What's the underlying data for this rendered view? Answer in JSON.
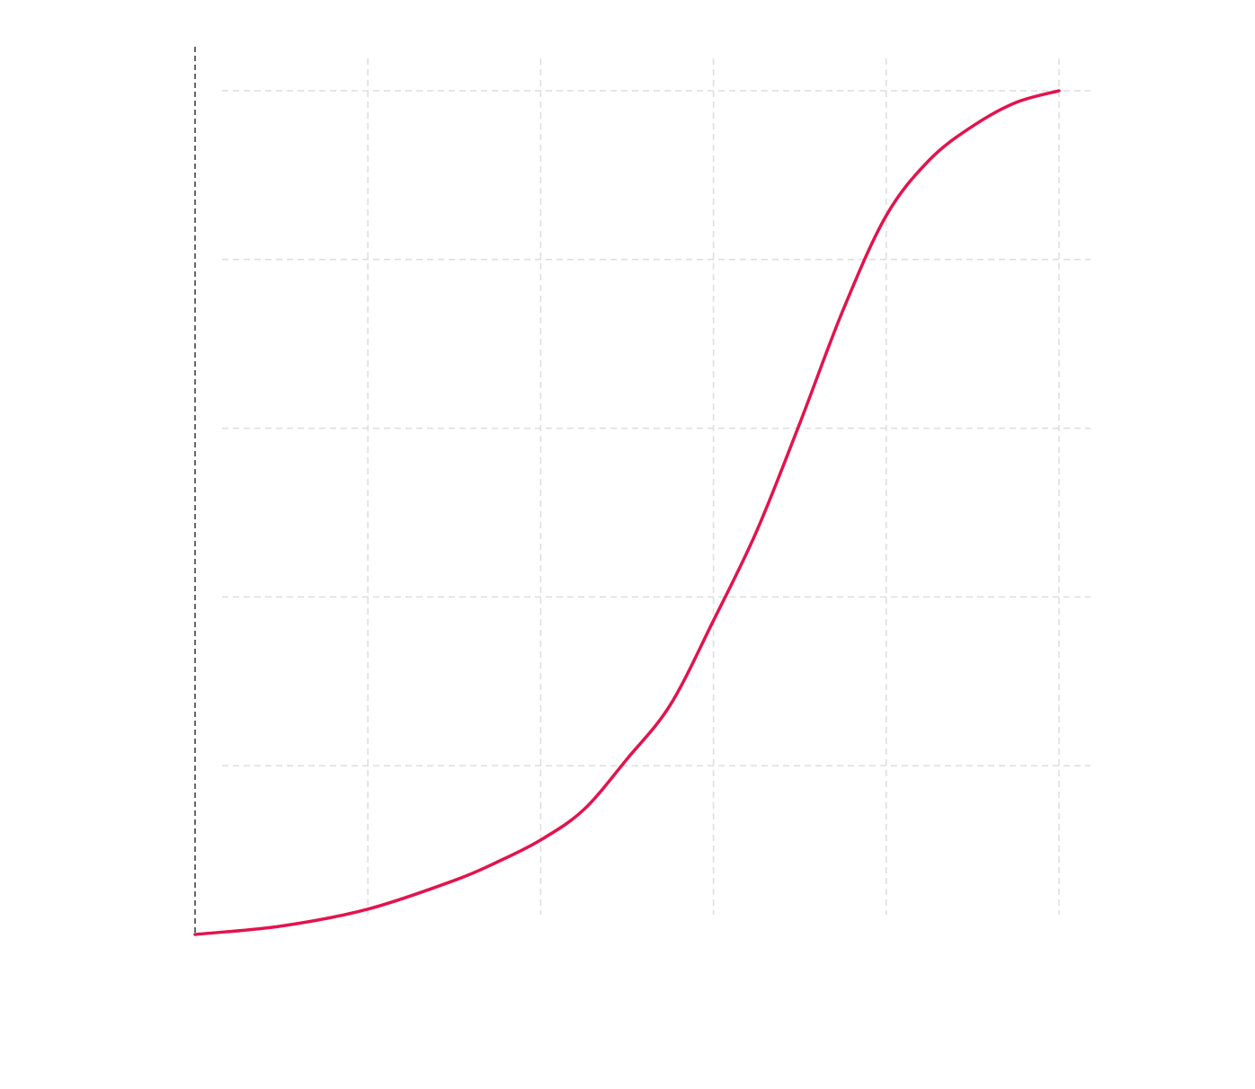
{
  "chart_data": {
    "type": "line",
    "x": [
      0,
      0.5,
      1,
      1.5,
      1.75,
      2,
      2.25,
      2.5,
      2.75,
      3,
      3.25,
      3.5,
      3.75,
      4,
      4.25,
      4.5,
      4.75,
      5
    ],
    "series": [
      {
        "color": "#e3134d",
        "values": [
          0,
          0.05,
          0.15,
          0.32,
          0.43,
          0.56,
          0.74,
          1.04,
          1.36,
          1.86,
          2.39,
          3.03,
          3.7,
          4.26,
          4.59,
          4.79,
          4.93,
          5
        ]
      }
    ],
    "xlim": [
      0,
      5
    ],
    "ylim": [
      0,
      5
    ],
    "xticks": [
      1,
      2,
      3,
      4,
      5
    ],
    "yticks": [
      1,
      2,
      3,
      4,
      5
    ],
    "grid": true,
    "tick_labels": false
  }
}
